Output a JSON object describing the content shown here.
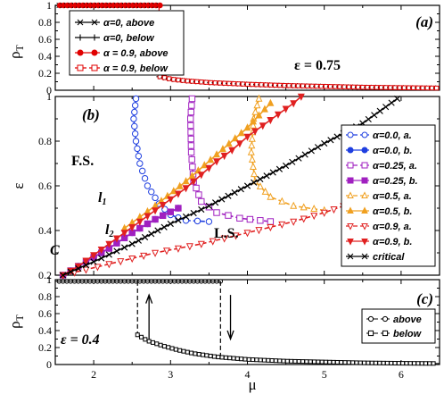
{
  "chart_data": [
    {
      "id": "a",
      "type": "line",
      "panel_label": "(a)",
      "ylabel": "ρT",
      "annotation": "ε = 0.75",
      "xlim": [
        1.5,
        6.5
      ],
      "ylim": [
        0,
        1
      ],
      "yticks": [
        "0",
        "0.2",
        "0.4",
        "0.6",
        "0.8",
        "1"
      ],
      "legend_position": "top-left",
      "transition_mu": 2.85,
      "series": [
        {
          "name": "α=0, above",
          "marker": "x",
          "color": "#000000",
          "dashed": false
        },
        {
          "name": "α=0, below",
          "marker": "+",
          "color": "#000000",
          "dashed": false
        },
        {
          "name": "α = 0.9, above",
          "marker": "circle",
          "color": "#e00000",
          "dashed": false
        },
        {
          "name": "α = 0.9, below",
          "marker": "square-open",
          "color": "#e00000",
          "dashed": true
        }
      ],
      "curve": {
        "mu": [
          2.85,
          3.0,
          3.2,
          3.5,
          4.0,
          4.5,
          5.0,
          5.5,
          6.0,
          6.5
        ],
        "rho": [
          0.16,
          0.13,
          0.11,
          0.09,
          0.07,
          0.055,
          0.045,
          0.035,
          0.03,
          0.025
        ]
      }
    },
    {
      "id": "b",
      "type": "line",
      "panel_label": "(b)",
      "ylabel": "ε",
      "xlim": [
        1.5,
        6.5
      ],
      "ylim": [
        0.2,
        1.0
      ],
      "yticks": [
        "0.2",
        "0.4",
        "0.6",
        "0.8",
        "1"
      ],
      "legend_position": "right",
      "labels": {
        "fs": "F.S.",
        "ls": "L.S.",
        "c": "C",
        "l1": "l",
        "l1_sub": "1",
        "l2": "l",
        "l2_sub": "2"
      },
      "series": [
        {
          "name": "α=0.0, a.",
          "color": "#1f3fe0",
          "marker": "circle-open",
          "dashed": true,
          "mu": [
            2.55,
            2.52,
            2.55,
            2.6,
            2.7,
            2.85,
            3.0,
            3.2,
            3.5
          ],
          "eps": [
            0.99,
            0.9,
            0.8,
            0.7,
            0.6,
            0.52,
            0.47,
            0.445,
            0.44
          ]
        },
        {
          "name": "α=0.0, b.",
          "color": "#1f3fe0",
          "marker": "circle",
          "dashed": false,
          "mu": [
            1.6,
            1.9,
            2.2,
            2.5,
            2.8,
            3.1
          ],
          "eps": [
            0.2,
            0.26,
            0.32,
            0.39,
            0.45,
            0.5
          ]
        },
        {
          "name": "α=0.25, a.",
          "color": "#a020c0",
          "marker": "square-open",
          "dashed": true,
          "mu": [
            3.28,
            3.26,
            3.27,
            3.3,
            3.4,
            3.6,
            3.9,
            4.3
          ],
          "eps": [
            0.99,
            0.9,
            0.75,
            0.62,
            0.53,
            0.48,
            0.455,
            0.44
          ]
        },
        {
          "name": "α=0.25, b.",
          "color": "#a020c0",
          "marker": "square",
          "dashed": false,
          "mu": [
            1.6,
            1.9,
            2.2,
            2.5,
            2.8,
            3.1
          ],
          "eps": [
            0.2,
            0.26,
            0.32,
            0.39,
            0.45,
            0.5
          ]
        },
        {
          "name": "α=0.5, a.",
          "color": "#f0a020",
          "marker": "triangle-open",
          "dashed": true,
          "mu": [
            4.15,
            4.08,
            4.05,
            4.1,
            4.3,
            4.6,
            5.0
          ],
          "eps": [
            0.99,
            0.9,
            0.75,
            0.62,
            0.55,
            0.51,
            0.49
          ]
        },
        {
          "name": "α=0.5, b.",
          "color": "#f0a020",
          "marker": "triangle",
          "dashed": false,
          "mu": [
            2.4,
            2.8,
            3.2,
            3.6,
            4.0,
            4.3
          ],
          "eps": [
            0.41,
            0.51,
            0.62,
            0.74,
            0.86,
            0.97
          ]
        },
        {
          "name": "α=0.9, a.",
          "color": "#e02020",
          "marker": "triangle-down-open",
          "dashed": true,
          "mu": [
            1.6,
            2.2,
            2.8,
            3.4,
            4.0,
            4.6,
            5.0,
            5.5,
            5.75
          ],
          "eps": [
            0.2,
            0.25,
            0.3,
            0.34,
            0.39,
            0.44,
            0.48,
            0.54,
            0.6
          ]
        },
        {
          "name": "α=0.9, b.",
          "color": "#e02020",
          "marker": "triangle-down",
          "dashed": false,
          "mu": [
            1.6,
            1.8,
            2.0,
            2.2,
            2.4,
            2.6,
            2.8,
            3.0,
            3.2,
            3.4,
            3.6,
            3.8,
            4.0,
            4.2,
            4.4,
            4.6,
            4.7
          ],
          "eps": [
            0.2,
            0.24,
            0.29,
            0.34,
            0.39,
            0.44,
            0.49,
            0.54,
            0.59,
            0.65,
            0.71,
            0.76,
            0.82,
            0.87,
            0.92,
            0.97,
            1.0
          ]
        },
        {
          "name": "critical",
          "color": "#000000",
          "marker": "x",
          "dashed": false,
          "mu": [
            1.6,
            2.0,
            2.5,
            3.0,
            3.5,
            4.0,
            4.5,
            5.0,
            5.5,
            5.95
          ],
          "eps": [
            0.2,
            0.26,
            0.34,
            0.43,
            0.51,
            0.6,
            0.69,
            0.79,
            0.88,
            0.99
          ]
        }
      ]
    },
    {
      "id": "c",
      "type": "line",
      "panel_label": "(c)",
      "ylabel": "ρT",
      "annotation": "ε = 0.4",
      "xlabel": "μ",
      "xlim": [
        1.5,
        6.5
      ],
      "xticks": [
        "2",
        "3",
        "4",
        "5",
        "6"
      ],
      "ylim": [
        0,
        1
      ],
      "yticks": [
        "0",
        "0.2",
        "0.4",
        "0.6",
        "0.8",
        "1"
      ],
      "legend_position": "top-right",
      "series": [
        {
          "name": "above",
          "marker": "circle-open",
          "color": "#000000",
          "jump_mu": 3.65,
          "high": 0.98
        },
        {
          "name": "below",
          "marker": "square-open",
          "color": "#000000",
          "jump_mu": 2.57,
          "high": 0.98,
          "curve_mu": [
            2.57,
            2.7,
            2.9,
            3.1,
            3.3,
            3.6,
            4.0,
            4.5,
            5.0,
            5.5,
            6.0,
            6.5
          ],
          "curve_rho": [
            0.35,
            0.28,
            0.22,
            0.17,
            0.13,
            0.09,
            0.06,
            0.04,
            0.03,
            0.02,
            0.015,
            0.012
          ]
        }
      ]
    }
  ]
}
